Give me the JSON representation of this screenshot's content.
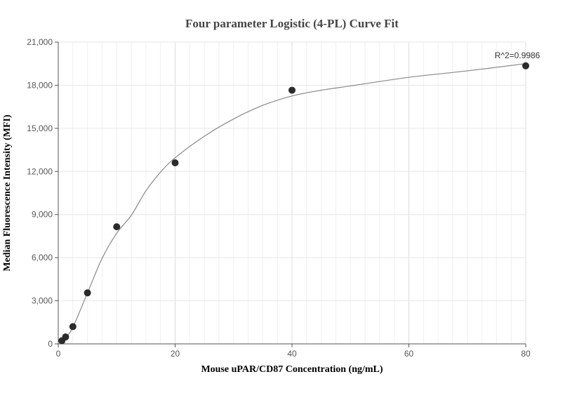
{
  "chart_data": {
    "type": "scatter",
    "title": "Four parameter Logistic (4-PL) Curve Fit",
    "xlabel": "Mouse uPAR/CD87 Concentration (ng/mL)",
    "ylabel": "Median Fluorescence Intensity (MFI)",
    "xlim": [
      0,
      80
    ],
    "ylim": [
      0,
      21000
    ],
    "x_ticks": [
      0,
      20,
      40,
      60,
      80
    ],
    "x_tick_labels": [
      "0",
      "20",
      "40",
      "60",
      "80"
    ],
    "y_ticks": [
      0,
      3000,
      6000,
      9000,
      12000,
      15000,
      18000,
      21000
    ],
    "y_tick_labels": [
      "0",
      "3,000",
      "6,000",
      "9,000",
      "12,000",
      "15,000",
      "18,000",
      "21,000"
    ],
    "grid": true,
    "series": [
      {
        "points": [
          {
            "x": 0.625,
            "y": 220
          },
          {
            "x": 1.25,
            "y": 480
          },
          {
            "x": 2.5,
            "y": 1200
          },
          {
            "x": 5,
            "y": 3550
          },
          {
            "x": 10,
            "y": 8150
          },
          {
            "x": 20,
            "y": 12600
          },
          {
            "x": 40,
            "y": 17650
          },
          {
            "x": 80,
            "y": 19350
          }
        ]
      }
    ],
    "fit_curve": [
      {
        "x": 0.6,
        "y": 150
      },
      {
        "x": 1.25,
        "y": 420
      },
      {
        "x": 2.5,
        "y": 1150
      },
      {
        "x": 5,
        "y": 3550
      },
      {
        "x": 7.5,
        "y": 5950
      },
      {
        "x": 10,
        "y": 7700
      },
      {
        "x": 12.5,
        "y": 8950
      },
      {
        "x": 15,
        "y": 10650
      },
      {
        "x": 17.5,
        "y": 11950
      },
      {
        "x": 20,
        "y": 12950
      },
      {
        "x": 25,
        "y": 14450
      },
      {
        "x": 30,
        "y": 15650
      },
      {
        "x": 35,
        "y": 16600
      },
      {
        "x": 40,
        "y": 17250
      },
      {
        "x": 45,
        "y": 17650
      },
      {
        "x": 50,
        "y": 17950
      },
      {
        "x": 60,
        "y": 18550
      },
      {
        "x": 70,
        "y": 19000
      },
      {
        "x": 80,
        "y": 19500
      }
    ],
    "annotation": {
      "text": "R^2=0.9986",
      "x": 80,
      "y": 19350,
      "position": "above-left"
    },
    "colors": {
      "points": "#2b2b2b",
      "curve": "#888888",
      "grid": "#e6e6e6",
      "axis": "#555555"
    }
  }
}
